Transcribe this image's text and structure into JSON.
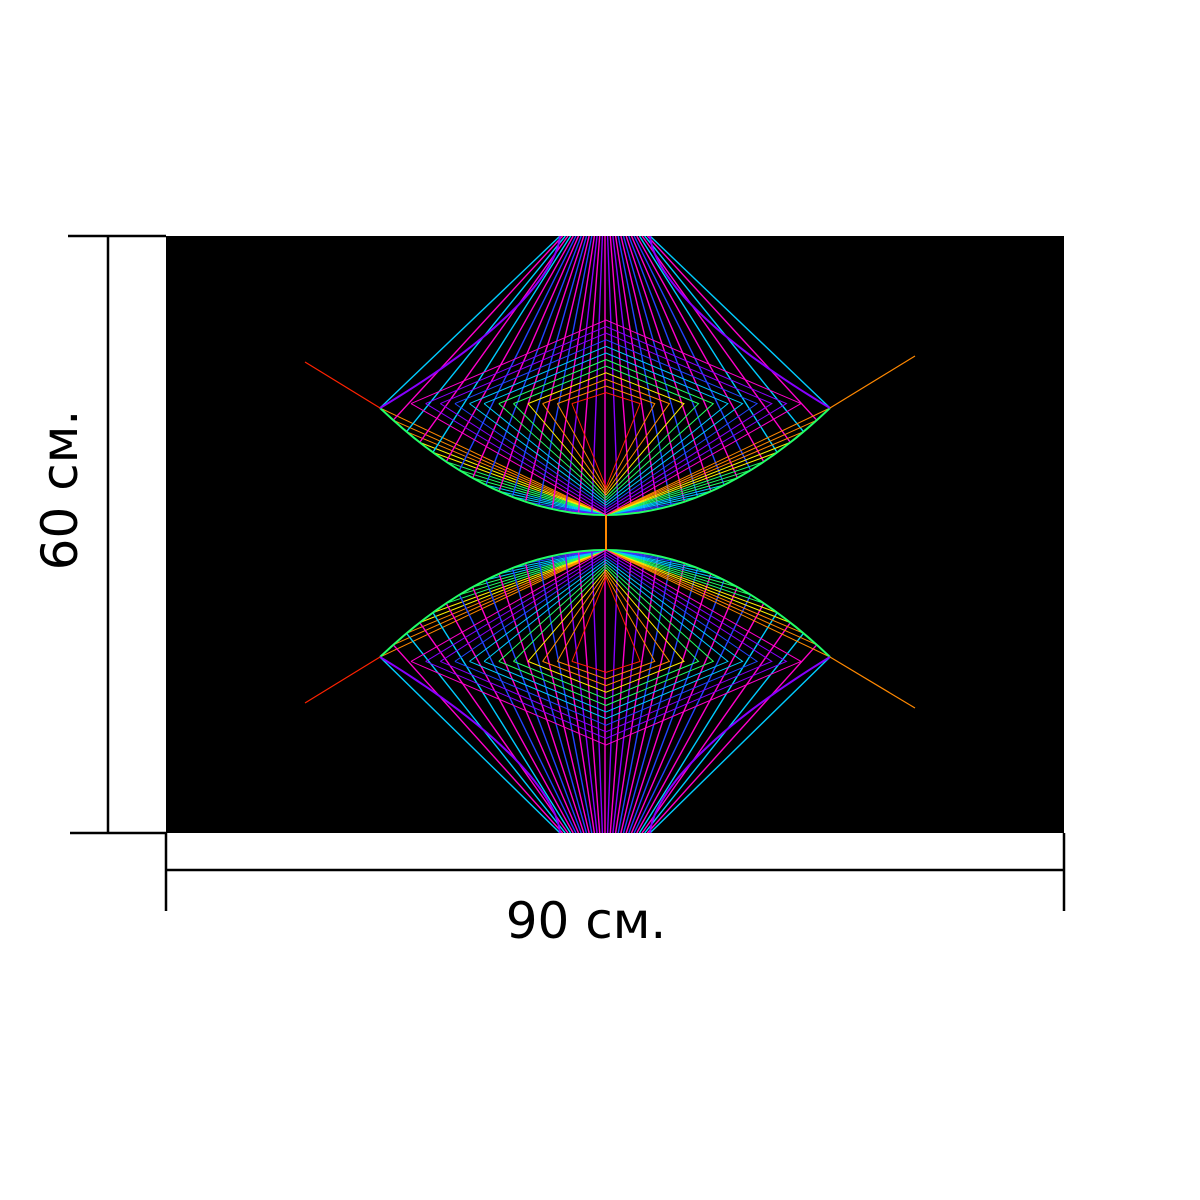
{
  "dimensions": {
    "width_label": "90 см.",
    "height_label": "60 см."
  },
  "artwork": {
    "background_color": "#000000",
    "colors": [
      "#ff00cc",
      "#8800ff",
      "#2244ff",
      "#00ccff",
      "#22ff66",
      "#ffee00",
      "#ff8800",
      "#ff2200"
    ]
  }
}
